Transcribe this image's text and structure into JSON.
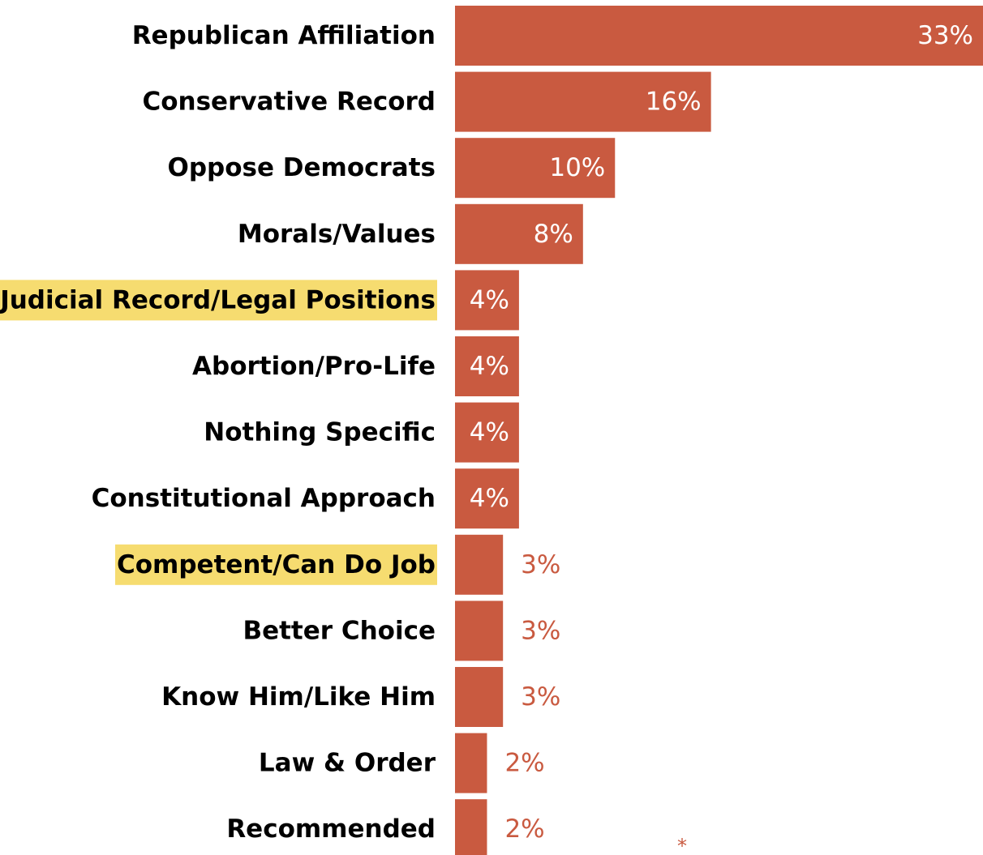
{
  "chart_data": {
    "type": "bar",
    "orientation": "horizontal",
    "categories": [
      "Republican Affiliation",
      "Conservative Record",
      "Oppose Democrats",
      "Morals/Values",
      "Judicial Record/Legal Positions",
      "Abortion/Pro-Life",
      "Nothing Specific",
      "Constitutional Approach",
      "Competent/Can Do Job",
      "Better Choice",
      "Know Him/Like Him",
      "Law & Order",
      "Recommended"
    ],
    "values": [
      33,
      16,
      10,
      8,
      4,
      4,
      4,
      4,
      3,
      3,
      3,
      2,
      2
    ],
    "value_labels": [
      "33%",
      "16%",
      "10%",
      "8%",
      "4%",
      "4%",
      "4%",
      "4%",
      "3%",
      "3%",
      "3%",
      "2%",
      "2%"
    ],
    "highlighted": [
      false,
      false,
      false,
      false,
      true,
      false,
      false,
      false,
      true,
      false,
      false,
      false,
      false
    ],
    "xlim": [
      0,
      33
    ],
    "title": "",
    "xlabel": "",
    "ylabel": "",
    "grid": false,
    "footnote": "*"
  },
  "colors": {
    "bar": "#c95a40",
    "highlight": "#f6dc70",
    "label_inside": "#ffffff",
    "label_outside": "#c95a40"
  }
}
